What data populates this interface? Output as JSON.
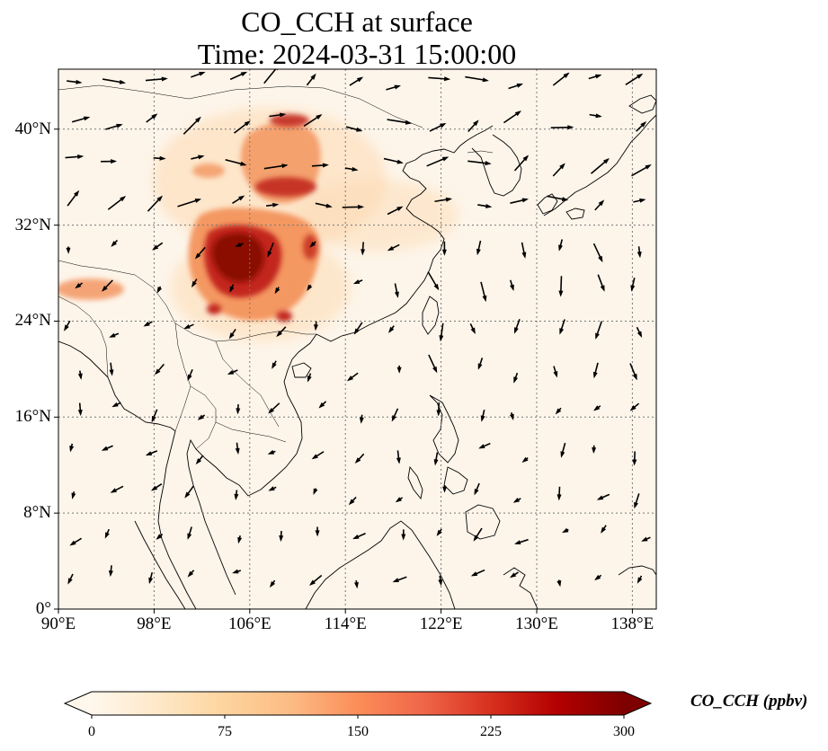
{
  "title": {
    "line1": "CO_CCH at surface",
    "line2": "Time: 2024-03-31 15:00:00"
  },
  "map": {
    "extent_lon": [
      90,
      140
    ],
    "extent_lat": [
      0,
      45
    ],
    "gridlines": "dotted",
    "lon_ticks": [
      {
        "value": 90,
        "label": "90°E"
      },
      {
        "value": 98,
        "label": "98°E"
      },
      {
        "value": 106,
        "label": "106°E"
      },
      {
        "value": 114,
        "label": "114°E"
      },
      {
        "value": 122,
        "label": "122°E"
      },
      {
        "value": 130,
        "label": "130°E"
      },
      {
        "value": 138,
        "label": "138°E"
      }
    ],
    "lat_ticks": [
      {
        "value": 0,
        "label": "0°"
      },
      {
        "value": 8,
        "label": "8°N"
      },
      {
        "value": 16,
        "label": "16°N"
      },
      {
        "value": 24,
        "label": "24°N"
      },
      {
        "value": 32,
        "label": "32°N"
      },
      {
        "value": 40,
        "label": "40°N"
      }
    ],
    "field_colors": {
      "background": "#fdf5ea",
      "low": "#fdd9b0",
      "mid": "#f2894f",
      "high": "#c2281c",
      "peak": "#8a0a06"
    },
    "vector_color": "#000000"
  },
  "colorbar": {
    "label": "CO_CCH (ppbv)",
    "min": 0,
    "max": 300,
    "extend": "both",
    "colormap": "OrRd",
    "ticks": [
      {
        "value": 0,
        "label": "0"
      },
      {
        "value": 75,
        "label": "75"
      },
      {
        "value": 150,
        "label": "150"
      },
      {
        "value": 225,
        "label": "225"
      },
      {
        "value": 300,
        "label": "300"
      }
    ],
    "stops": [
      "#fff7ec",
      "#fee8c8",
      "#fdd49e",
      "#fdbb84",
      "#fc8d59",
      "#ef6548",
      "#d7301f",
      "#b30000",
      "#7f0000"
    ]
  }
}
